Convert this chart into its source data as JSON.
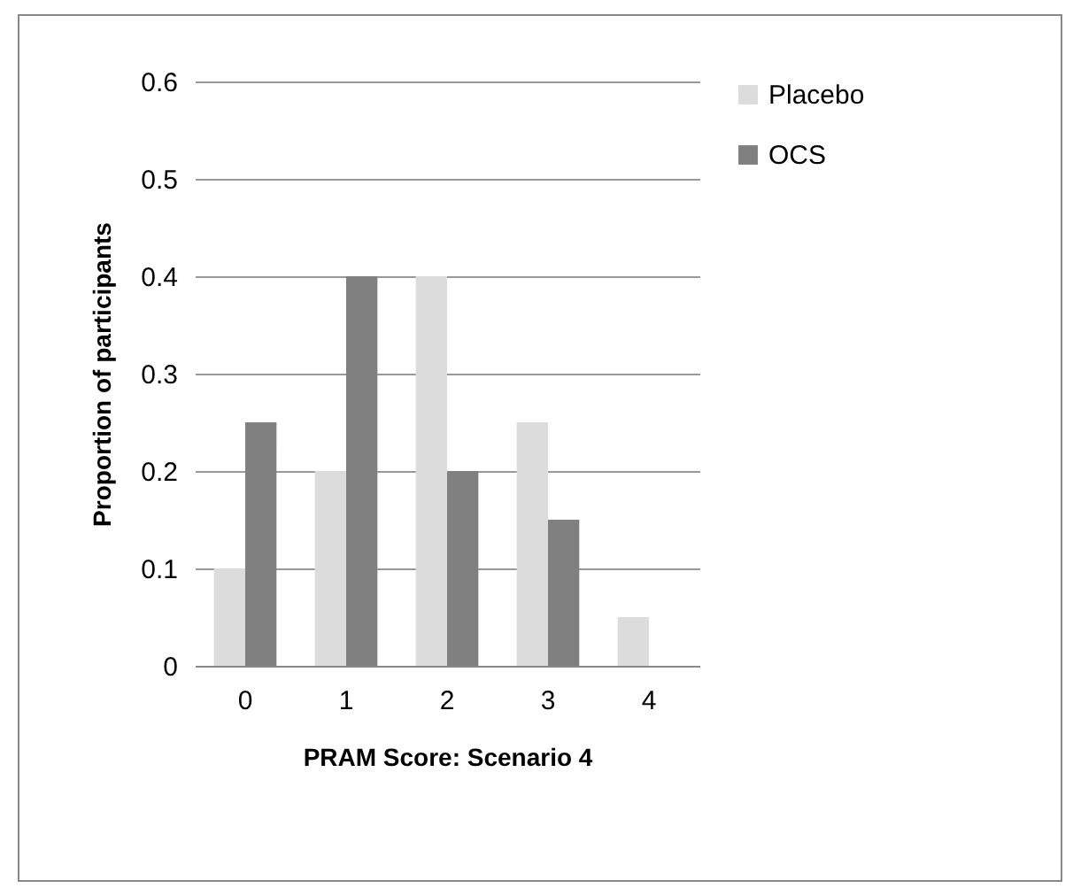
{
  "chart_data": {
    "type": "bar",
    "xlabel": "PRAM Score:  Scenario 4",
    "ylabel": "Proportion of participants",
    "categories": [
      "0",
      "1",
      "2",
      "3",
      "4"
    ],
    "series": [
      {
        "name": "Placebo",
        "color": "#dcdcdc",
        "values": [
          0.1,
          0.2,
          0.4,
          0.25,
          0.05
        ]
      },
      {
        "name": "OCS",
        "color": "#808080",
        "values": [
          0.25,
          0.4,
          0.2,
          0.15,
          0
        ]
      }
    ],
    "ylim": [
      0,
      0.6
    ],
    "yticks": [
      0,
      0.1,
      0.2,
      0.3,
      0.4,
      0.5,
      0.6
    ],
    "grid": "y",
    "legend": "right"
  }
}
